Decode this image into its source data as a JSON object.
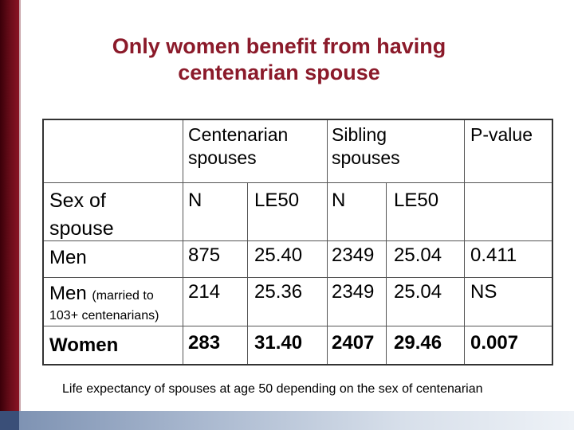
{
  "title": {
    "line1": "Only women benefit from having",
    "line2": "centenarian spouse"
  },
  "table": {
    "group_headers": {
      "centenarian_line1": "Centenarian",
      "centenarian_line2": "spouses",
      "sibling_line1": "Sibling",
      "sibling_line2": "spouses",
      "pvalue": "P-value"
    },
    "row_label_header_line1": "Sex of",
    "row_label_header_line2": "spouse",
    "sub_headers": [
      "N",
      "LE50",
      "N",
      "LE50"
    ],
    "rows": [
      {
        "label": "Men",
        "label_note": "",
        "label_note2": "",
        "cells": [
          "875",
          "25.40",
          "2349",
          "25.04",
          "0.411"
        ]
      },
      {
        "label": "Men",
        "label_note": "(married to",
        "label_note2": "103+ centenarians)",
        "cells": [
          "214",
          "25.36",
          "2349",
          "25.04",
          "NS"
        ]
      },
      {
        "label": "Women",
        "label_note": "",
        "label_note2": "",
        "cells": [
          "283",
          "31.40",
          "2407",
          "29.46",
          "0.007"
        ]
      }
    ]
  },
  "caption": "Life expectancy of spouses at age 50 depending on the sex of centenarian",
  "colors": {
    "title": "#8b1a2a",
    "left_bar": "#6b0d1a",
    "bottom_bar": "#a9b8cf"
  }
}
